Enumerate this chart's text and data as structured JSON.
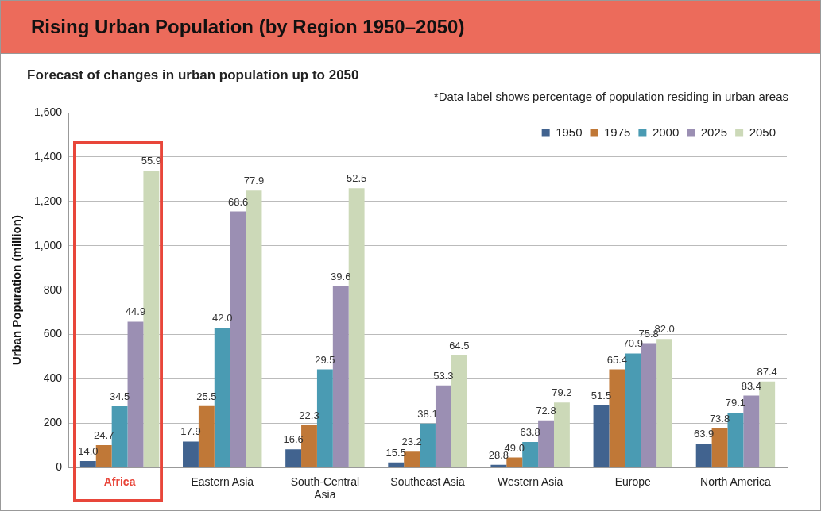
{
  "chart_data": {
    "type": "bar",
    "title": "Rising Urban Population (by Region 1950–2050)",
    "subtitle": "Forecast of changes in urban population up to 2050",
    "ylabel": "Urban Popuration (million)",
    "categories": [
      "Africa",
      "Eastern Asia",
      "South-Central Asia",
      "Southeast Asia",
      "Western Asia",
      "Europe",
      "North America"
    ],
    "series": [
      {
        "name": "1950",
        "color": "#41638f",
        "values": [
          30,
          118,
          83,
          24,
          13,
          282,
          108
        ]
      },
      {
        "name": "1975",
        "color": "#c07837",
        "values": [
          102,
          278,
          191,
          72,
          46,
          443,
          178
        ]
      },
      {
        "name": "2000",
        "color": "#4a9bb3",
        "values": [
          277,
          631,
          443,
          199,
          116,
          515,
          248
        ]
      },
      {
        "name": "2025",
        "color": "#9b8fb3",
        "values": [
          658,
          1155,
          818,
          371,
          213,
          561,
          325
        ]
      },
      {
        "name": "2050",
        "color": "#ccd9b8",
        "values": [
          1338,
          1249,
          1259,
          507,
          294,
          580,
          389
        ]
      }
    ],
    "annotations": [
      "*Data label shows percentage of population residing in urban areas",
      "14.0",
      "17.9",
      "16.6",
      "15.5",
      "28.8",
      "51.5",
      "63.9",
      "24.7",
      "25.5",
      "22.3",
      "23.2",
      "49.0",
      "65.4",
      "73.8",
      "34.5",
      "42.0",
      "29.5",
      "38.1",
      "63.8",
      "70.9",
      "79.1",
      "44.9",
      "68.6",
      "39.6",
      "53.3",
      "72.8",
      "75.8",
      "83.4",
      "55.9",
      "77.9",
      "52.5",
      "64.5",
      "79.2",
      "82.0",
      "87.4"
    ],
    "ylim": [
      0,
      1600
    ],
    "yticks": [
      {
        "value": 0,
        "label": "0"
      },
      {
        "value": 200,
        "label": "200"
      },
      {
        "value": 400,
        "label": "400"
      },
      {
        "value": 600,
        "label": "600"
      },
      {
        "value": 800,
        "label": "800"
      },
      {
        "value": 1000,
        "label": "1,000"
      },
      {
        "value": 1200,
        "label": "1,200"
      },
      {
        "value": 1400,
        "label": "1,400"
      },
      {
        "value": 1600,
        "label": "1,600"
      }
    ],
    "grid": "y",
    "legend": "top right"
  }
}
